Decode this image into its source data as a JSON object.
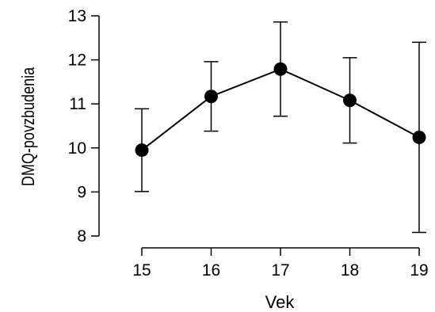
{
  "chart_data": {
    "type": "line",
    "xlabel": "Vek",
    "ylabel": "DMQ-povzbudenia",
    "x": [
      15,
      16,
      17,
      18,
      19
    ],
    "xticks": [
      "15",
      "16",
      "17",
      "18",
      "19"
    ],
    "yticks": [
      "8",
      "9",
      "10",
      "11",
      "12",
      "13"
    ],
    "ylim": [
      8,
      13
    ],
    "xlim": [
      15,
      19
    ],
    "grid": false,
    "series": [
      {
        "values": [
          9.95,
          11.17,
          11.79,
          11.08,
          10.24
        ],
        "error_lower": [
          9.01,
          10.38,
          10.72,
          10.11,
          8.08
        ],
        "error_upper": [
          10.89,
          11.96,
          12.86,
          12.05,
          12.4
        ],
        "color": "#000000"
      }
    ]
  }
}
